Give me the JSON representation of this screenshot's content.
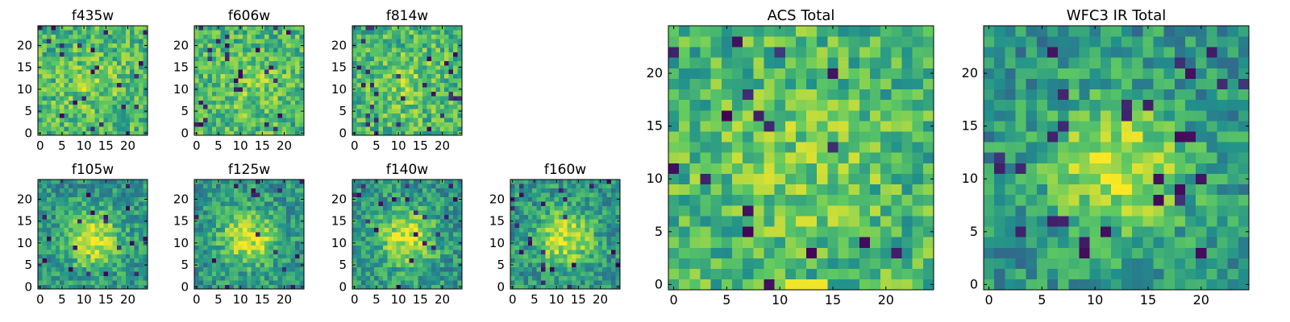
{
  "figure": {
    "background": "#ffffff"
  },
  "colormap": [
    "#440154",
    "#3b528b",
    "#21918c",
    "#5ec962",
    "#fde725"
  ],
  "chart_data": [
    {
      "type": "heatmap",
      "title": "f435w",
      "xticks": [
        "0",
        "5",
        "10",
        "15",
        "20"
      ],
      "yticks": [
        "0",
        "5",
        "10",
        "15",
        "20"
      ],
      "xlim": [
        -0.5,
        24.5
      ],
      "ylim": [
        -0.5,
        24.5
      ],
      "grid_size": [
        25,
        25
      ],
      "pattern": "noise",
      "values_note": "per-pixel flux, random noise with faint central source"
    },
    {
      "type": "heatmap",
      "title": "f606w",
      "xticks": [
        "0",
        "5",
        "10",
        "15",
        "20"
      ],
      "yticks": [
        "0",
        "5",
        "10",
        "15",
        "20"
      ],
      "xlim": [
        -0.5,
        24.5
      ],
      "ylim": [
        -0.5,
        24.5
      ],
      "grid_size": [
        25,
        25
      ],
      "pattern": "noise"
    },
    {
      "type": "heatmap",
      "title": "f814w",
      "xticks": [
        "0",
        "5",
        "10",
        "15",
        "20"
      ],
      "yticks": [
        "0",
        "5",
        "10",
        "15",
        "20"
      ],
      "xlim": [
        -0.5,
        24.5
      ],
      "ylim": [
        -0.5,
        24.5
      ],
      "grid_size": [
        25,
        25
      ],
      "pattern": "noise"
    },
    {
      "type": "heatmap",
      "title": "f105w",
      "xticks": [
        "0",
        "5",
        "10",
        "15",
        "20"
      ],
      "yticks": [
        "0",
        "5",
        "10",
        "15",
        "20"
      ],
      "xlim": [
        -0.5,
        24.5
      ],
      "ylim": [
        -0.5,
        24.5
      ],
      "grid_size": [
        25,
        25
      ],
      "pattern": "source"
    },
    {
      "type": "heatmap",
      "title": "f125w",
      "xticks": [
        "0",
        "5",
        "10",
        "15",
        "20"
      ],
      "yticks": [
        "0",
        "5",
        "10",
        "15",
        "20"
      ],
      "xlim": [
        -0.5,
        24.5
      ],
      "ylim": [
        -0.5,
        24.5
      ],
      "grid_size": [
        25,
        25
      ],
      "pattern": "source"
    },
    {
      "type": "heatmap",
      "title": "f140w",
      "xticks": [
        "0",
        "5",
        "10",
        "15",
        "20"
      ],
      "yticks": [
        "0",
        "5",
        "10",
        "15",
        "20"
      ],
      "xlim": [
        -0.5,
        24.5
      ],
      "ylim": [
        -0.5,
        24.5
      ],
      "grid_size": [
        25,
        25
      ],
      "pattern": "source"
    },
    {
      "type": "heatmap",
      "title": "f160w",
      "xticks": [
        "0",
        "5",
        "10",
        "15",
        "20"
      ],
      "yticks": [
        "0",
        "5",
        "10",
        "15",
        "20"
      ],
      "xlim": [
        -0.5,
        24.5
      ],
      "ylim": [
        -0.5,
        24.5
      ],
      "grid_size": [
        25,
        25
      ],
      "pattern": "source"
    },
    {
      "type": "heatmap",
      "title": "ACS Total",
      "xticks": [
        "0",
        "5",
        "10",
        "15",
        "20"
      ],
      "yticks": [
        "0",
        "5",
        "10",
        "15",
        "20"
      ],
      "xlim": [
        -0.5,
        24.5
      ],
      "ylim": [
        -0.5,
        24.5
      ],
      "grid_size": [
        25,
        25
      ],
      "pattern": "noise"
    },
    {
      "type": "heatmap",
      "title": "WFC3 IR Total",
      "xticks": [
        "0",
        "5",
        "10",
        "15",
        "20"
      ],
      "yticks": [
        "0",
        "5",
        "10",
        "15",
        "20"
      ],
      "xlim": [
        -0.5,
        24.5
      ],
      "ylim": [
        -0.5,
        24.5
      ],
      "grid_size": [
        25,
        25
      ],
      "pattern": "source"
    }
  ]
}
